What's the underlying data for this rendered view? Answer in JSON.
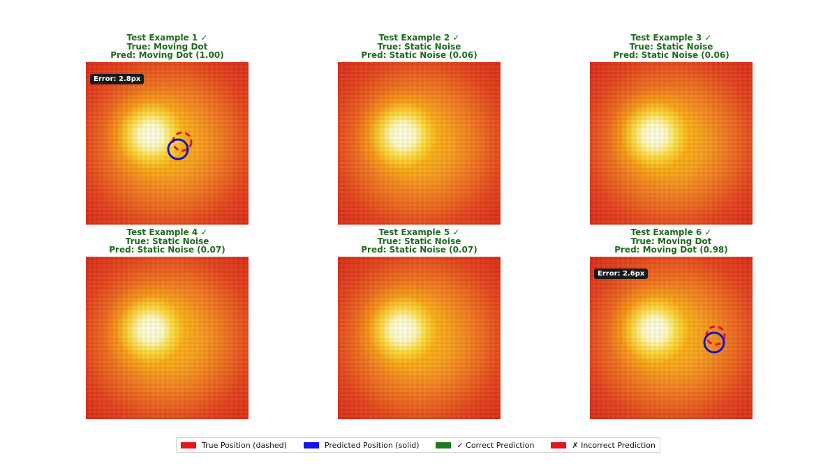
{
  "chart_data": [
    {
      "type": "heatmap",
      "title": [
        "Test Example 1 ✓",
        "True: Moving Dot",
        "Pred: Moving Dot (1.00)"
      ],
      "correct": true,
      "error_label": "Error: 2.8px"
    },
    {
      "type": "heatmap",
      "title": [
        "Test Example 2 ✓",
        "True: Static Noise",
        "Pred: Static Noise (0.06)"
      ],
      "correct": true,
      "error_label": null
    },
    {
      "type": "heatmap",
      "title": [
        "Test Example 3 ✓",
        "True: Static Noise",
        "Pred: Static Noise (0.06)"
      ],
      "correct": true,
      "error_label": null
    },
    {
      "type": "heatmap",
      "title": [
        "Test Example 4 ✓",
        "True: Static Noise",
        "Pred: Static Noise (0.07)"
      ],
      "correct": true,
      "error_label": null
    },
    {
      "type": "heatmap",
      "title": [
        "Test Example 5 ✓",
        "True: Static Noise",
        "Pred: Static Noise (0.07)"
      ],
      "correct": true,
      "error_label": null
    },
    {
      "type": "heatmap",
      "title": [
        "Test Example 6 ✓",
        "True: Moving Dot",
        "Pred: Moving Dot (0.98)"
      ],
      "correct": true,
      "error_label": "Error: 2.6px"
    }
  ],
  "legend": [
    {
      "label": "True Position (dashed)",
      "color": "#e8141a"
    },
    {
      "label": "Predicted Position (solid)",
      "color": "#1414e6"
    },
    {
      "label": "✓ Correct Prediction",
      "color": "#1f7a1f"
    },
    {
      "label": "✗ Incorrect Prediction",
      "color": "#e8141a"
    }
  ],
  "colors": {
    "title_correct": "#1f6a1f",
    "true_marker": "#e8141a",
    "pred_marker": "#1414c8"
  }
}
